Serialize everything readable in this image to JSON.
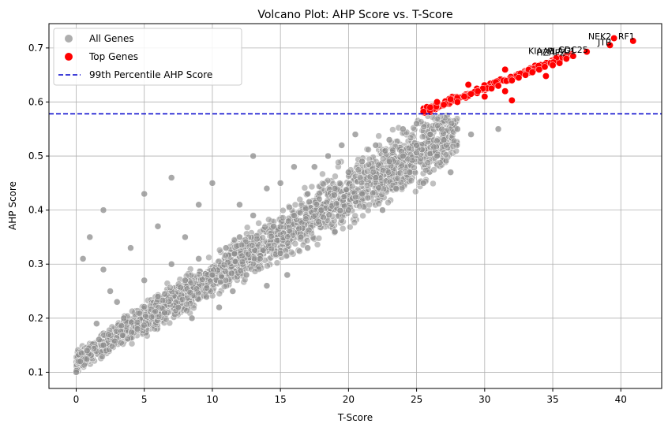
{
  "chart_data": {
    "type": "scatter",
    "title": "Volcano Plot: AHP Score vs. T-Score",
    "xlabel": "T-Score",
    "ylabel": "AHP Score",
    "xlim": [
      -2,
      43
    ],
    "ylim": [
      0.07,
      0.745
    ],
    "xticks": [
      0,
      5,
      10,
      15,
      20,
      25,
      30,
      35,
      40
    ],
    "yticks": [
      0.1,
      0.2,
      0.3,
      0.4,
      0.5,
      0.6,
      0.7
    ],
    "grid": true,
    "legend": {
      "placement": "top-left",
      "entries": [
        {
          "label": "All Genes",
          "color": "#8c8c8c"
        },
        {
          "label": "Top Genes",
          "color": "#ff0000"
        },
        {
          "label": "99th Percentile AHP Score",
          "color": "#0000cc",
          "style": "dashed"
        }
      ]
    },
    "threshold": {
      "label": "99th Percentile AHP Score",
      "y": 0.578,
      "color": "#0000cc"
    },
    "series": [
      {
        "name": "All Genes",
        "color": "#8c8c8c",
        "points": [
          [
            0,
            0.1
          ],
          [
            0.3,
            0.12
          ],
          [
            0.5,
            0.31
          ],
          [
            0.8,
            0.14
          ],
          [
            1,
            0.35
          ],
          [
            1.5,
            0.19
          ],
          [
            2,
            0.29
          ],
          [
            2,
            0.15
          ],
          [
            2.5,
            0.25
          ],
          [
            2,
            0.4
          ],
          [
            3,
            0.23
          ],
          [
            3.5,
            0.2
          ],
          [
            4,
            0.33
          ],
          [
            4.5,
            0.18
          ],
          [
            5,
            0.43
          ],
          [
            5,
            0.27
          ],
          [
            6,
            0.24
          ],
          [
            6,
            0.37
          ],
          [
            6.5,
            0.21
          ],
          [
            7,
            0.46
          ],
          [
            7,
            0.3
          ],
          [
            7.5,
            0.22
          ],
          [
            8,
            0.35
          ],
          [
            8,
            0.27
          ],
          [
            8.5,
            0.2
          ],
          [
            9,
            0.41
          ],
          [
            9,
            0.31
          ],
          [
            10,
            0.28
          ],
          [
            10,
            0.45
          ],
          [
            10.5,
            0.22
          ],
          [
            11,
            0.33
          ],
          [
            11.5,
            0.25
          ],
          [
            12,
            0.41
          ],
          [
            12,
            0.35
          ],
          [
            12.5,
            0.28
          ],
          [
            13,
            0.5
          ],
          [
            13,
            0.39
          ],
          [
            13.5,
            0.31
          ],
          [
            14,
            0.44
          ],
          [
            14,
            0.26
          ],
          [
            14.5,
            0.37
          ],
          [
            15,
            0.45
          ],
          [
            15,
            0.32
          ],
          [
            15.5,
            0.28
          ],
          [
            16,
            0.48
          ],
          [
            16,
            0.39
          ],
          [
            16.5,
            0.35
          ],
          [
            17,
            0.43
          ],
          [
            17,
            0.33
          ],
          [
            17.5,
            0.48
          ],
          [
            18,
            0.4
          ],
          [
            18.5,
            0.5
          ],
          [
            19,
            0.44
          ],
          [
            19,
            0.36
          ],
          [
            19.5,
            0.52
          ],
          [
            20,
            0.47
          ],
          [
            20,
            0.4
          ],
          [
            20.5,
            0.54
          ],
          [
            21,
            0.49
          ],
          [
            21,
            0.43
          ],
          [
            22,
            0.52
          ],
          [
            22,
            0.46
          ],
          [
            22.5,
            0.4
          ],
          [
            23,
            0.53
          ],
          [
            23,
            0.49
          ],
          [
            23.5,
            0.44
          ],
          [
            24,
            0.55
          ],
          [
            24,
            0.5
          ],
          [
            24.5,
            0.47
          ],
          [
            25,
            0.56
          ],
          [
            25,
            0.52
          ],
          [
            25.5,
            0.45
          ],
          [
            26,
            0.54
          ],
          [
            26.5,
            0.5
          ],
          [
            27,
            0.53
          ],
          [
            27.5,
            0.47
          ],
          [
            28,
            0.55
          ],
          [
            29,
            0.54
          ],
          [
            31,
            0.55
          ]
        ]
      },
      {
        "name": "Top Genes",
        "color": "#ff0000",
        "points": [
          [
            25.5,
            0.582
          ],
          [
            26,
            0.59
          ],
          [
            26.5,
            0.6
          ],
          [
            27,
            0.595
          ],
          [
            27.5,
            0.605
          ],
          [
            28,
            0.6
          ],
          [
            28.5,
            0.61
          ],
          [
            28.8,
            0.632
          ],
          [
            29,
            0.615
          ],
          [
            29.5,
            0.62
          ],
          [
            30,
            0.61
          ],
          [
            30.5,
            0.625
          ],
          [
            31,
            0.63
          ],
          [
            31.5,
            0.66
          ],
          [
            31.5,
            0.62
          ],
          [
            32,
            0.64
          ],
          [
            32,
            0.603
          ],
          [
            32.5,
            0.645
          ],
          [
            33,
            0.65
          ],
          [
            33.5,
            0.655
          ],
          [
            34,
            0.66
          ],
          [
            34.5,
            0.648
          ],
          [
            35,
            0.668
          ],
          [
            35.5,
            0.672
          ],
          [
            36,
            0.68
          ],
          [
            36.5,
            0.685
          ],
          [
            37.5,
            0.693
          ],
          [
            39.2,
            0.705
          ],
          [
            39.5,
            0.718
          ],
          [
            40.9,
            0.713
          ]
        ]
      }
    ],
    "annotations": [
      {
        "text": "NEK2",
        "x": 37.6,
        "y": 0.716
      },
      {
        "text": "RF1",
        "x": 39.8,
        "y": 0.716
      },
      {
        "text": "JTB",
        "x": 38.3,
        "y": 0.705
      },
      {
        "text": "CDC25",
        "x": 35.4,
        "y": 0.691
      },
      {
        "text": "KIAA0",
        "x": 33.2,
        "y": 0.689
      },
      {
        "text": "PLAG1",
        "x": 34.6,
        "y": 0.689
      },
      {
        "text": "HZAFZ",
        "x": 33.8,
        "y": 0.686
      }
    ]
  }
}
